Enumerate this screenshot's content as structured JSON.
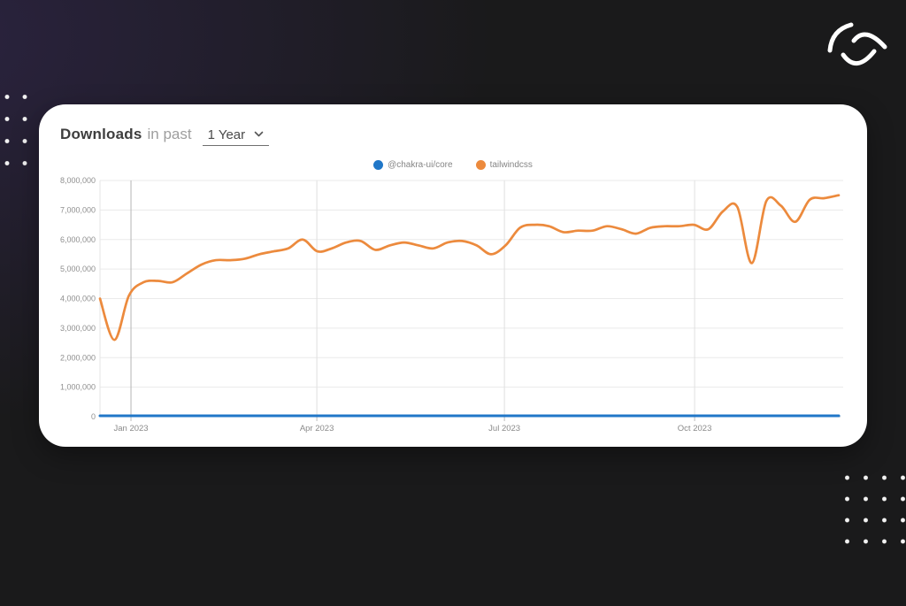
{
  "header": {
    "title": "Downloads",
    "subtitle": "in past",
    "range_value": "1 Year"
  },
  "icons": {
    "chevron_down": "v-shaped chevron",
    "brand_logo": "white swirl mark (three curved strokes)"
  },
  "colors": {
    "background": "#1a1a1b",
    "background_glow": "#2b2340",
    "card": "#ffffff",
    "chakra_blue": "#2077c8",
    "tailwind_orange": "#ec8a3d",
    "grid_line": "#eaeaea",
    "tick_text": "#8f8f8f"
  },
  "chart_data": {
    "type": "line",
    "title": "Downloads in past 1 Year",
    "unit": "millions of downloads per week",
    "x_unit": "weeks, Dec 2022 – Dec 2023",
    "x_range": [
      0,
      51
    ],
    "y_range": [
      0,
      8
    ],
    "grid": true,
    "legend_position": "top-center",
    "y_ticks": [
      {
        "value": 0,
        "label": "0"
      },
      {
        "value": 1,
        "label": "1,000,000"
      },
      {
        "value": 2,
        "label": "2,000,000"
      },
      {
        "value": 3,
        "label": "3,000,000"
      },
      {
        "value": 4,
        "label": "4,000,000"
      },
      {
        "value": 5,
        "label": "5,000,000"
      },
      {
        "value": 6,
        "label": "6,000,000"
      },
      {
        "value": 7,
        "label": "7,000,000"
      },
      {
        "value": 8,
        "label": "8,000,000"
      }
    ],
    "x_ticks": [
      {
        "pos": 2.14,
        "label": "Jan 2023"
      },
      {
        "pos": 14.97,
        "label": "Apr 2023"
      },
      {
        "pos": 27.92,
        "label": "Jul 2023"
      },
      {
        "pos": 41.05,
        "label": "Oct 2023"
      }
    ],
    "series": [
      {
        "name": "@chakra-ui/core",
        "color": "#2077c8",
        "values": [
          0.03,
          0.03,
          0.03,
          0.03,
          0.03,
          0.03,
          0.03,
          0.03,
          0.03,
          0.03,
          0.03,
          0.03,
          0.03,
          0.03,
          0.03,
          0.03,
          0.03,
          0.03,
          0.03,
          0.03,
          0.03,
          0.03,
          0.03,
          0.03,
          0.03,
          0.03,
          0.03,
          0.03,
          0.03,
          0.03,
          0.03,
          0.03,
          0.03,
          0.03,
          0.03,
          0.03,
          0.03,
          0.03,
          0.03,
          0.03,
          0.03,
          0.03,
          0.03,
          0.03,
          0.03,
          0.03,
          0.03,
          0.03,
          0.03,
          0.03,
          0.03,
          0.03
        ]
      },
      {
        "name": "tailwindcss",
        "color": "#ec8a3d",
        "values": [
          4.0,
          2.6,
          4.1,
          4.55,
          4.6,
          4.55,
          4.85,
          5.15,
          5.3,
          5.3,
          5.35,
          5.5,
          5.6,
          5.7,
          6.0,
          5.6,
          5.7,
          5.9,
          5.95,
          5.65,
          5.8,
          5.9,
          5.8,
          5.7,
          5.9,
          5.95,
          5.8,
          5.5,
          5.8,
          6.4,
          6.5,
          6.45,
          6.25,
          6.3,
          6.3,
          6.45,
          6.35,
          6.2,
          6.4,
          6.45,
          6.45,
          6.5,
          6.35,
          6.95,
          7.1,
          5.2,
          7.3,
          7.15,
          6.6,
          7.35,
          7.4,
          7.5
        ]
      }
    ]
  }
}
